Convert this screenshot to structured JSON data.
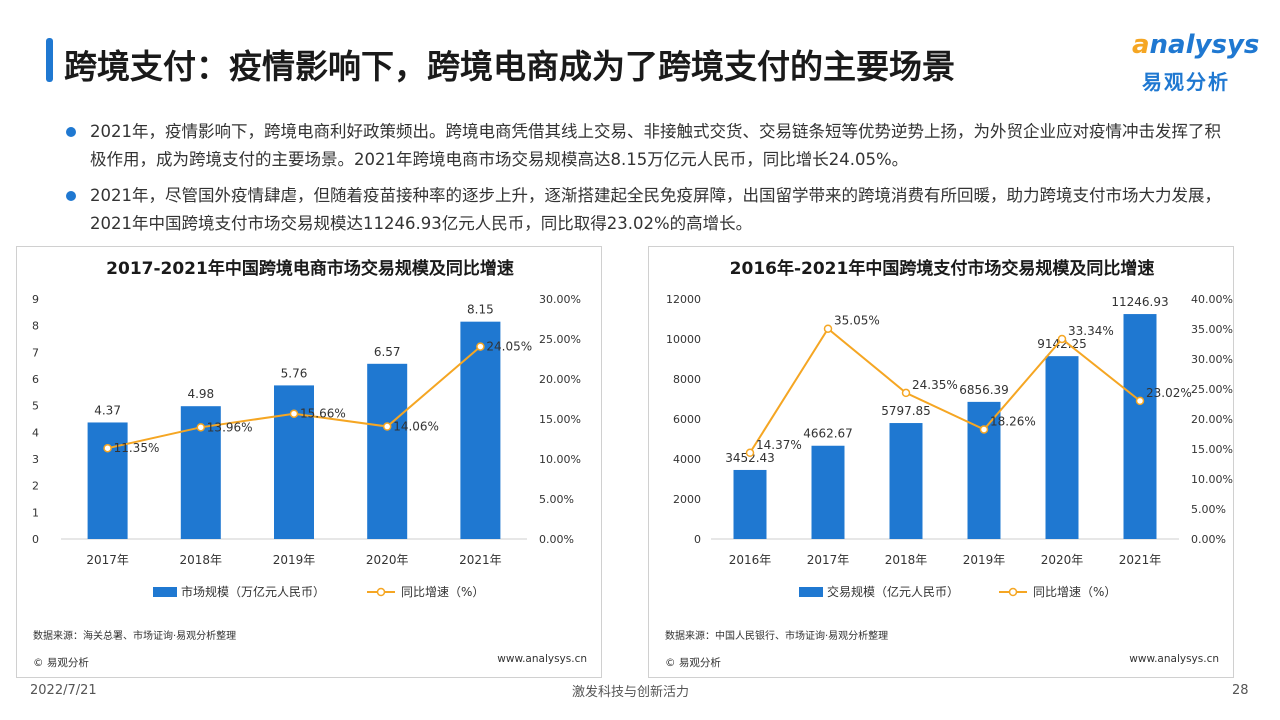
{
  "header": {
    "title": "跨境支付：疫情影响下，跨境电商成为了跨境支付的主要场景",
    "logo_en_ring": "a",
    "logo_en_rest": "nalysys",
    "logo_cn": "易观分析"
  },
  "bullets": [
    "2021年，疫情影响下，跨境电商利好政策频出。跨境电商凭借其线上交易、非接触式交货、交易链条短等优势逆势上扬，为外贸企业应对疫情冲击发挥了积极作用，成为跨境支付的主要场景。2021年跨境电商市场交易规模高达8.15万亿元人民币，同比增长24.05%。",
    "2021年，尽管国外疫情肆虐，但随着疫苗接种率的逐步上升，逐渐搭建起全民免疫屏障，出国留学带来的跨境消费有所回暖，助力跨境支付市场大力发展，2021年中国跨境支付市场交易规模达11246.93亿元人民币，同比取得23.02%的高增长。"
  ],
  "colors": {
    "bar": "#1f78d1",
    "line": "#f5a623",
    "accent": "#1f78d1"
  },
  "chart_data": [
    {
      "type": "bar",
      "title": "2017-2021年中国跨境电商市场交易规模及同比增速",
      "categories": [
        "2017年",
        "2018年",
        "2019年",
        "2020年",
        "2021年"
      ],
      "series": [
        {
          "name": "市场规模（万亿元人民币）",
          "type": "bar",
          "axis": "left",
          "values": [
            4.37,
            4.98,
            5.76,
            6.57,
            8.15
          ],
          "labels": [
            "4.37",
            "4.98",
            "5.76",
            "6.57",
            "8.15"
          ]
        },
        {
          "name": "同比增速（%）",
          "type": "line",
          "axis": "right",
          "values": [
            11.35,
            13.96,
            15.66,
            14.06,
            24.05
          ],
          "labels": [
            "11.35%",
            "13.96%",
            "15.66%",
            "14.06%",
            "24.05%"
          ]
        }
      ],
      "y_left": {
        "min": 0,
        "max": 9,
        "ticks": [
          "0",
          "1",
          "2",
          "3",
          "4",
          "5",
          "6",
          "7",
          "8",
          "9"
        ]
      },
      "y_right": {
        "min": 0,
        "max": 30,
        "ticks": [
          "0.00%",
          "5.00%",
          "10.00%",
          "15.00%",
          "20.00%",
          "25.00%",
          "30.00%"
        ]
      },
      "source": "数据来源：海关总署、市场证询·易观分析整理",
      "copyright": "© 易观分析",
      "website": "www.analysys.cn"
    },
    {
      "type": "bar",
      "title": "2016年-2021年中国跨境支付市场交易规模及同比增速",
      "categories": [
        "2016年",
        "2017年",
        "2018年",
        "2019年",
        "2020年",
        "2021年"
      ],
      "series": [
        {
          "name": "交易规模（亿元人民币）",
          "type": "bar",
          "axis": "left",
          "values": [
            3452.43,
            4662.67,
            5797.85,
            6856.39,
            9142.25,
            11246.93
          ],
          "labels": [
            "3452.43",
            "4662.67",
            "5797.85",
            "6856.39",
            "9142.25",
            "11246.93"
          ]
        },
        {
          "name": "同比增速（%）",
          "type": "line",
          "axis": "right",
          "values": [
            14.37,
            35.05,
            24.35,
            18.26,
            33.34,
            23.02
          ],
          "labels": [
            "14.37%",
            "35.05%",
            "24.35%",
            "18.26%",
            "33.34%",
            "23.02%"
          ]
        }
      ],
      "y_left": {
        "min": 0,
        "max": 12000,
        "ticks": [
          "0",
          "2000",
          "4000",
          "6000",
          "8000",
          "10000",
          "12000"
        ]
      },
      "y_right": {
        "min": 0,
        "max": 40,
        "ticks": [
          "0.00%",
          "5.00%",
          "10.00%",
          "15.00%",
          "20.00%",
          "25.00%",
          "30.00%",
          "35.00%",
          "40.00%"
        ]
      },
      "source": "数据来源：中国人民银行、市场证询·易观分析整理",
      "copyright": "© 易观分析",
      "website": "www.analysys.cn"
    }
  ],
  "footer": {
    "date": "2022/7/21",
    "slogan": "激发科技与创新活力",
    "page": "28"
  }
}
